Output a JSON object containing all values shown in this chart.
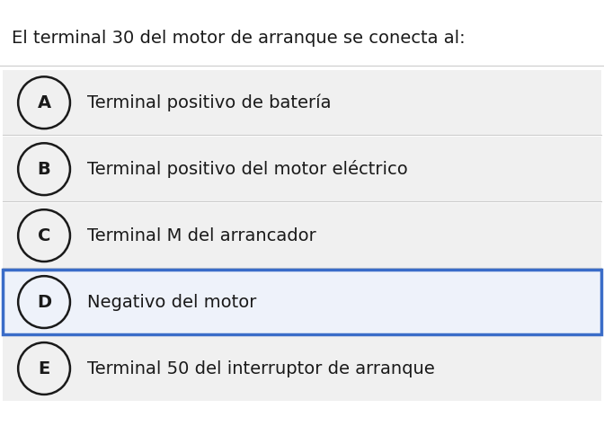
{
  "title": "El terminal 30 del motor de arranque se conecta al:",
  "options": [
    {
      "letter": "A",
      "text": "Terminal positivo de batería"
    },
    {
      "letter": "B",
      "text": "Terminal positivo del motor eléctrico"
    },
    {
      "letter": "C",
      "text": "Terminal M del arrancador"
    },
    {
      "letter": "D",
      "text": "Negativo del motor"
    },
    {
      "letter": "E",
      "text": "Terminal 50 del interruptor de arranque"
    }
  ],
  "selected": "D",
  "bg_color": "#ffffff",
  "option_bg_color": "#f0f0f0",
  "selected_bg_color": "#eef2fa",
  "selected_border_color": "#3a6cc8",
  "divider_color": "#cccccc",
  "title_fontsize": 14,
  "option_fontsize": 14,
  "text_color": "#1a1a1a",
  "circle_edge_color": "#1a1a1a",
  "fig_width": 6.72,
  "fig_height": 4.74
}
